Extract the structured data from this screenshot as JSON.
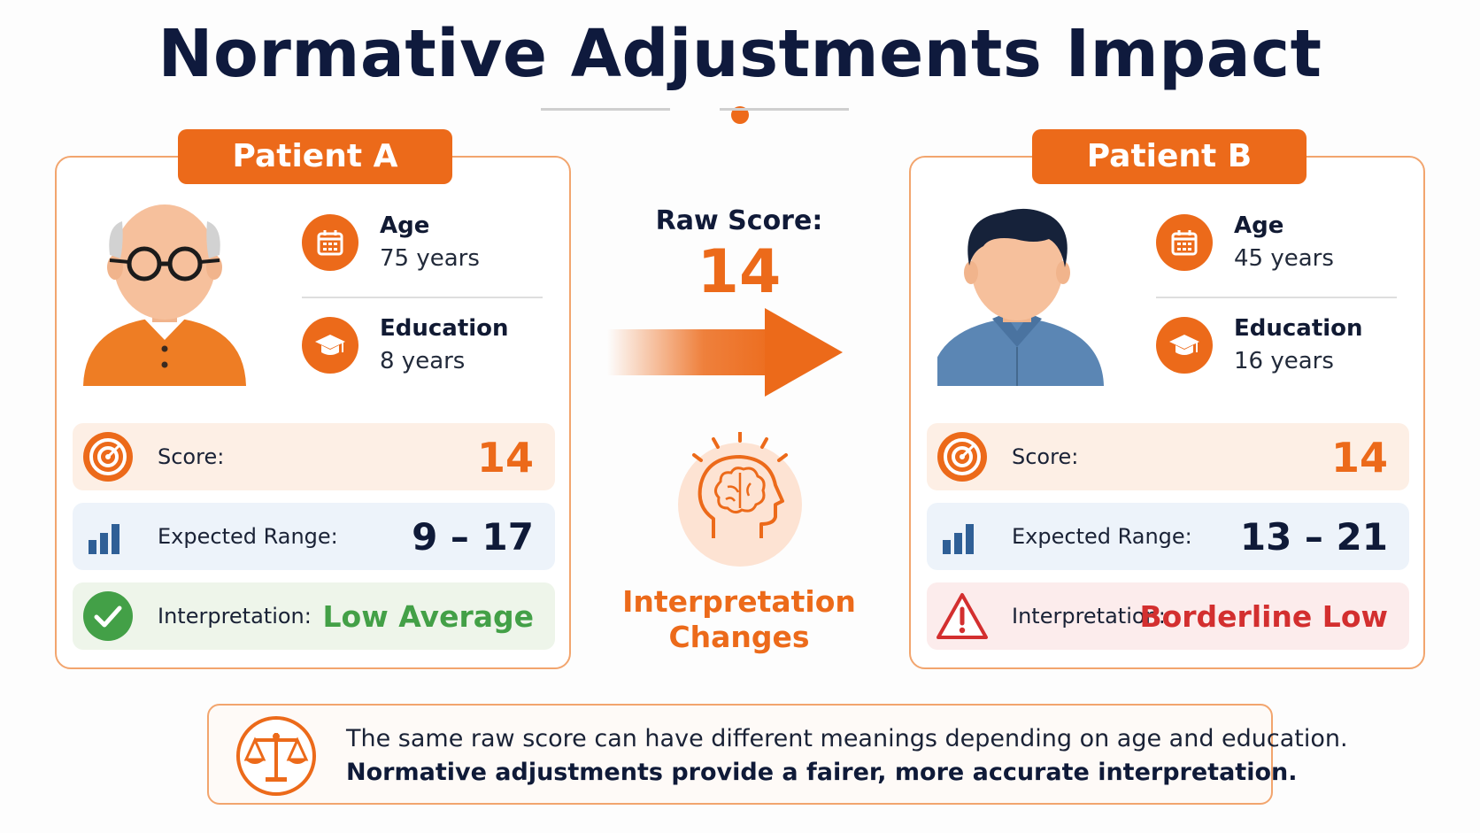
{
  "title": "Normative Adjustments Impact",
  "center": {
    "raw_score_label": "Raw Score:",
    "raw_score_value": "14",
    "change_text_1": "Interpretation",
    "change_text_2": "Changes"
  },
  "patient_a": {
    "header": "Patient A",
    "age_label": "Age",
    "age_value": "75 years",
    "education_label": "Education",
    "education_value": "8 years",
    "score_label": "Score:",
    "score_value": "14",
    "range_label": "Expected Range:",
    "range_value": "9 – 17",
    "interp_label": "Interpretation:",
    "interp_value": "Low Average"
  },
  "patient_b": {
    "header": "Patient B",
    "age_label": "Age",
    "age_value": "45 years",
    "education_label": "Education",
    "education_value": "16 years",
    "score_label": "Score:",
    "score_value": "14",
    "range_label": "Expected Range:",
    "range_value": "13 – 21",
    "interp_label": "Interpretation:",
    "interp_value": "Borderline Low"
  },
  "note": {
    "line1": "The same raw score can have different meanings depending on age and education.",
    "line2": "Normative adjustments provide a fairer, more accurate interpretation."
  },
  "colors": {
    "accent": "#ec6a1a",
    "navy": "#0f1a3d",
    "good": "#43a047",
    "bad": "#d32f2f",
    "chart_blue": "#2f5f96"
  },
  "icons": {
    "age": "calendar-icon",
    "education": "graduation-cap-icon",
    "score": "target-icon",
    "range": "bar-chart-icon",
    "interp_a": "check-circle-icon",
    "interp_b": "warning-triangle-icon",
    "center": "brain-head-icon",
    "note": "balance-scale-icon"
  }
}
